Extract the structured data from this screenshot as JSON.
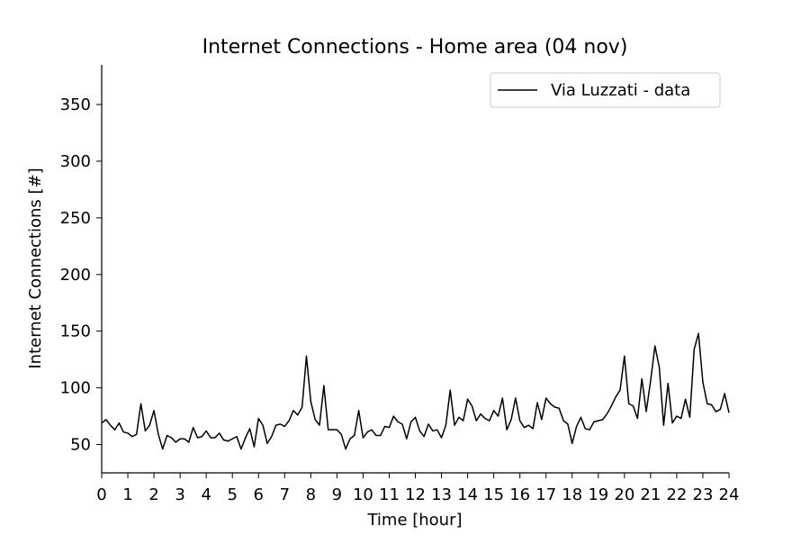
{
  "chart_data": {
    "type": "line",
    "title": "Internet Connections - Home area (04 nov)",
    "xlabel": "Time [hour]",
    "ylabel": "Internet Connections [#]",
    "xlim": [
      0,
      24
    ],
    "ylim": [
      25,
      385
    ],
    "xticks": [
      "0",
      "1",
      "2",
      "3",
      "4",
      "5",
      "6",
      "7",
      "8",
      "9",
      "10",
      "11",
      "12",
      "13",
      "14",
      "15",
      "16",
      "17",
      "18",
      "19",
      "20",
      "21",
      "22",
      "23",
      "24"
    ],
    "yticks": [
      "50",
      "100",
      "150",
      "200",
      "250",
      "300",
      "350"
    ],
    "grid": false,
    "legend_position": "top-right",
    "line_color": "#000000",
    "series": [
      {
        "name": "Via Luzzati - data",
        "x": [
          0,
          0.167,
          0.333,
          0.5,
          0.667,
          0.833,
          1,
          1.167,
          1.333,
          1.5,
          1.667,
          1.833,
          2,
          2.167,
          2.333,
          2.5,
          2.667,
          2.833,
          3,
          3.167,
          3.333,
          3.5,
          3.667,
          3.833,
          4,
          4.167,
          4.333,
          4.5,
          4.667,
          4.833,
          5,
          5.167,
          5.333,
          5.5,
          5.667,
          5.833,
          6,
          6.167,
          6.333,
          6.5,
          6.667,
          6.833,
          7,
          7.167,
          7.333,
          7.5,
          7.667,
          7.833,
          8,
          8.167,
          8.333,
          8.5,
          8.667,
          8.833,
          9,
          9.167,
          9.333,
          9.5,
          9.667,
          9.833,
          10,
          10.167,
          10.333,
          10.5,
          10.667,
          10.833,
          11,
          11.167,
          11.333,
          11.5,
          11.667,
          11.833,
          12,
          12.167,
          12.333,
          12.5,
          12.667,
          12.833,
          13,
          13.167,
          13.333,
          13.5,
          13.667,
          13.833,
          14,
          14.167,
          14.333,
          14.5,
          14.667,
          14.833,
          15,
          15.167,
          15.333,
          15.5,
          15.667,
          15.833,
          16,
          16.167,
          16.333,
          16.5,
          16.667,
          16.833,
          17,
          17.167,
          17.333,
          17.5,
          17.667,
          17.833,
          18,
          18.167,
          18.333,
          18.5,
          18.667,
          18.833,
          19,
          19.167,
          19.333,
          19.5,
          19.667,
          19.833,
          20,
          20.167,
          20.333,
          20.5,
          20.667,
          20.833,
          21,
          21.167,
          21.333,
          21.5,
          21.667,
          21.833,
          22,
          22.167,
          22.333,
          22.5,
          22.667,
          22.833,
          23,
          23.167,
          23.333,
          23.5,
          23.667,
          23.833,
          24
        ],
        "y": [
          69,
          72,
          67,
          63,
          69,
          61,
          60,
          57,
          59,
          86,
          62,
          67,
          80,
          59,
          46,
          58,
          56,
          52,
          55,
          55,
          52,
          65,
          56,
          57,
          62,
          56,
          56,
          60,
          54,
          53,
          55,
          57,
          46,
          56,
          64,
          48,
          73,
          67,
          51,
          57,
          67,
          68,
          66,
          71,
          80,
          76,
          83,
          128,
          88,
          72,
          67,
          102,
          63,
          63,
          63,
          59,
          46,
          55,
          58,
          80,
          56,
          61,
          63,
          58,
          58,
          66,
          65,
          75,
          70,
          68,
          55,
          70,
          74,
          62,
          57,
          68,
          62,
          63,
          56,
          67,
          98,
          67,
          74,
          71,
          90,
          84,
          71,
          77,
          73,
          71,
          80,
          75,
          91,
          63,
          72,
          91,
          71,
          65,
          67,
          64,
          87,
          72,
          91,
          86,
          83,
          82,
          71,
          68,
          51,
          66,
          74,
          64,
          63,
          70,
          71,
          72,
          77,
          84,
          92,
          98,
          128,
          86,
          84,
          73,
          108,
          79,
          106,
          137,
          118,
          67,
          104,
          69,
          75,
          73,
          90,
          74,
          134,
          148,
          105,
          86,
          85,
          79,
          81,
          95,
          78
        ]
      }
    ]
  }
}
